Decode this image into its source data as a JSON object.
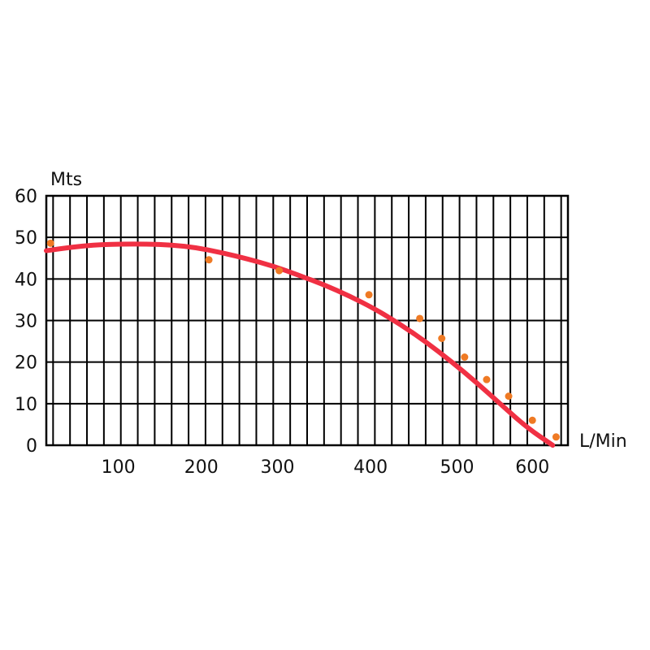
{
  "chart_data": {
    "type": "line",
    "title": "",
    "xlabel": "L/Min",
    "ylabel": "Mts",
    "xlim": [
      32,
      648
    ],
    "ylim": [
      0,
      60
    ],
    "grid": true,
    "x_ticks": [
      {
        "value": 117,
        "label": "100"
      },
      {
        "value": 215,
        "label": "200"
      },
      {
        "value": 305,
        "label": "300"
      },
      {
        "value": 415,
        "label": "400"
      },
      {
        "value": 517,
        "label": "500"
      },
      {
        "value": 606,
        "label": "600"
      }
    ],
    "y_ticks": [
      0,
      10,
      20,
      30,
      40,
      50,
      60
    ],
    "x_grid_step": 20,
    "colors": {
      "curve": "#f03043",
      "points": "#ef7a24",
      "grid": "#000000"
    },
    "series": [
      {
        "kind": "line",
        "x": [
          32,
          60,
          90,
          120,
          150,
          180,
          210,
          240,
          270,
          300,
          330,
          360,
          390,
          420,
          450,
          480,
          510,
          540,
          570,
          600,
          630
        ],
        "y": [
          46.8,
          47.6,
          48.2,
          48.4,
          48.4,
          48.2,
          47.5,
          46.3,
          44.8,
          43.1,
          40.9,
          38.6,
          35.9,
          32.8,
          29.1,
          24.9,
          20.2,
          15.1,
          9.6,
          4.2,
          0
        ]
      },
      {
        "kind": "scatter",
        "x": [
          37,
          224,
          307,
          413,
          473,
          499,
          526,
          552,
          578,
          606,
          634
        ],
        "y": [
          48.6,
          44.6,
          42.0,
          36.2,
          30.5,
          25.7,
          21.2,
          15.8,
          11.8,
          6.0,
          2.0
        ]
      }
    ]
  }
}
